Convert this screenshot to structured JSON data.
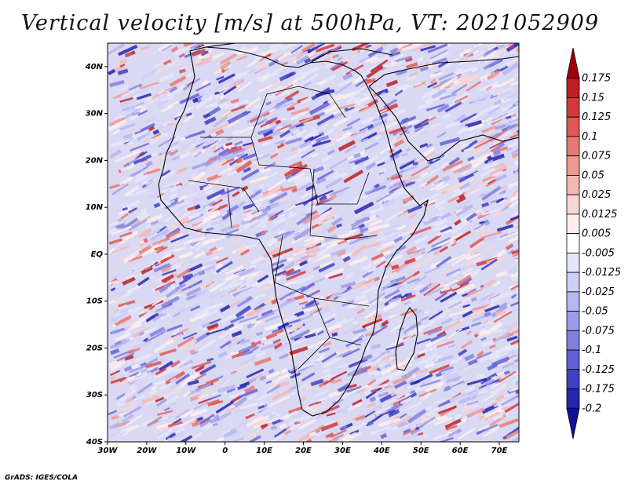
{
  "title": "Vertical velocity [m/s] at 500hPa, VT: 2021052909",
  "footer": "GrADS: IGES/COLA",
  "map": {
    "lon_range": [
      -30,
      75
    ],
    "lat_range": [
      -40,
      45
    ],
    "lon_ticks": [
      {
        "value": -30,
        "label": "30W"
      },
      {
        "value": -20,
        "label": "20W"
      },
      {
        "value": -10,
        "label": "10W"
      },
      {
        "value": 0,
        "label": "0"
      },
      {
        "value": 10,
        "label": "10E"
      },
      {
        "value": 20,
        "label": "20E"
      },
      {
        "value": 30,
        "label": "30E"
      },
      {
        "value": 40,
        "label": "40E"
      },
      {
        "value": 50,
        "label": "50E"
      },
      {
        "value": 60,
        "label": "60E"
      },
      {
        "value": 70,
        "label": "70E"
      }
    ],
    "lat_ticks": [
      {
        "value": 40,
        "label": "40N"
      },
      {
        "value": 30,
        "label": "30N"
      },
      {
        "value": 20,
        "label": "20N"
      },
      {
        "value": 10,
        "label": "10N"
      },
      {
        "value": 0,
        "label": "EQ"
      },
      {
        "value": -10,
        "label": "10S"
      },
      {
        "value": -20,
        "label": "20S"
      },
      {
        "value": -30,
        "label": "30S"
      },
      {
        "value": -40,
        "label": "40S"
      }
    ]
  },
  "colorbar": {
    "levels": [
      "0.175",
      "0.15",
      "0.125",
      "0.1",
      "0.075",
      "0.05",
      "0.025",
      "0.0125",
      "0.005",
      "-0.005",
      "-0.0125",
      "-0.025",
      "-0.05",
      "-0.075",
      "-0.1",
      "-0.125",
      "-0.175",
      "-0.2"
    ],
    "colors": [
      "#a0000e",
      "#be1e24",
      "#d3393b",
      "#df5856",
      "#e87872",
      "#ee9892",
      "#f3b8b3",
      "#f7d6d3",
      "#fbeeec",
      "#ffffff",
      "#e6e6fa",
      "#cfcff6",
      "#b6b6f0",
      "#9c9ce8",
      "#8080df",
      "#6161d4",
      "#4040c4",
      "#2525b0",
      "#10109a"
    ]
  },
  "legend_colors": {
    "positive": "#d3393b",
    "negative": "#6161d4",
    "coast": "#000000"
  }
}
